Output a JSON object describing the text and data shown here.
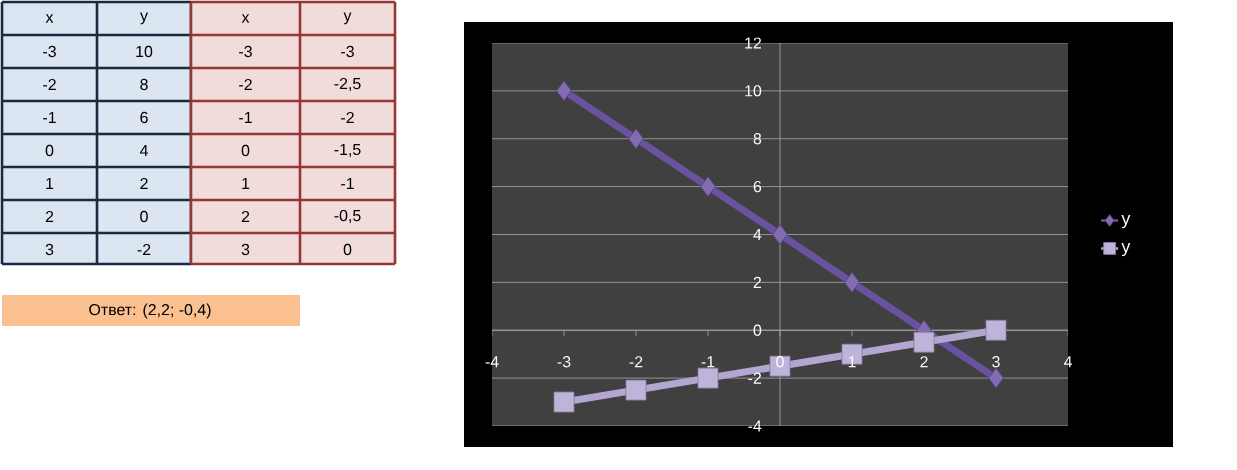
{
  "chart_data": {
    "type": "line",
    "x": [
      -3,
      -2,
      -1,
      0,
      1,
      2,
      3
    ],
    "series": [
      {
        "name": "y",
        "color": "#6a52a0",
        "marker": "diamond",
        "values": [
          10,
          8,
          6,
          4,
          2,
          0,
          -2
        ]
      },
      {
        "name": "y",
        "color": "#b3a6d1",
        "marker": "square",
        "values": [
          -3,
          -2.5,
          -2,
          -1.5,
          -1,
          -0.5,
          0
        ]
      }
    ],
    "xlim": [
      -4,
      4
    ],
    "xticks": [
      -4,
      -3,
      -2,
      -1,
      0,
      1,
      2,
      3,
      4
    ],
    "ylim": [
      -4,
      12
    ],
    "yticks": [
      -4,
      -2,
      0,
      2,
      4,
      6,
      8,
      10,
      12
    ],
    "grid": "y",
    "legend": "right",
    "annotations": [
      "x",
      "y",
      "x",
      "y",
      "-3",
      "10",
      "-3",
      "-3",
      "-2",
      "8",
      "-2",
      "-2,5",
      "-1",
      "6",
      "-1",
      "-2",
      "0",
      "4",
      "0",
      "-1,5",
      "1",
      "2",
      "1",
      "-1",
      "2",
      "0",
      "2",
      "-0,5",
      "3",
      "-2",
      "3",
      "0",
      "Ответ: (2,2; -0,4)"
    ]
  }
}
